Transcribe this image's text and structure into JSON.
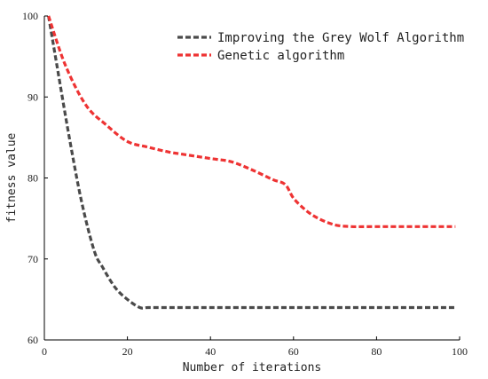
{
  "chart_data": {
    "type": "line",
    "xlabel": "Number of iterations",
    "ylabel": "fitness value",
    "xlim": [
      0,
      100
    ],
    "ylim": [
      60,
      100
    ],
    "x_ticks": [
      0,
      20,
      40,
      60,
      80,
      100
    ],
    "y_ticks": [
      60,
      70,
      80,
      90,
      100
    ],
    "grid": false,
    "legend_position": "top-right",
    "series": [
      {
        "name": "Improving the Grey Wolf Algorithm",
        "color": "#4a4a4a",
        "style": "dashed",
        "x": [
          1,
          3,
          6,
          9,
          12,
          14,
          17,
          20,
          23,
          25,
          30,
          40,
          60,
          80,
          99
        ],
        "y": [
          100,
          94,
          85,
          77,
          71,
          69,
          66.5,
          65,
          64,
          64,
          64,
          64,
          64,
          64,
          64
        ]
      },
      {
        "name": "Genetic algorithm",
        "color": "#ee3333",
        "style": "dashed",
        "x": [
          1,
          5,
          10,
          15,
          20,
          25,
          30,
          35,
          40,
          45,
          50,
          55,
          58,
          60,
          63,
          66,
          70,
          74,
          80,
          90,
          99
        ],
        "y": [
          100,
          94,
          89,
          86.5,
          84.5,
          83.8,
          83.2,
          82.8,
          82.4,
          82,
          81,
          79.8,
          79.2,
          77.5,
          76,
          75,
          74.2,
          74,
          74,
          74,
          74
        ]
      }
    ]
  }
}
